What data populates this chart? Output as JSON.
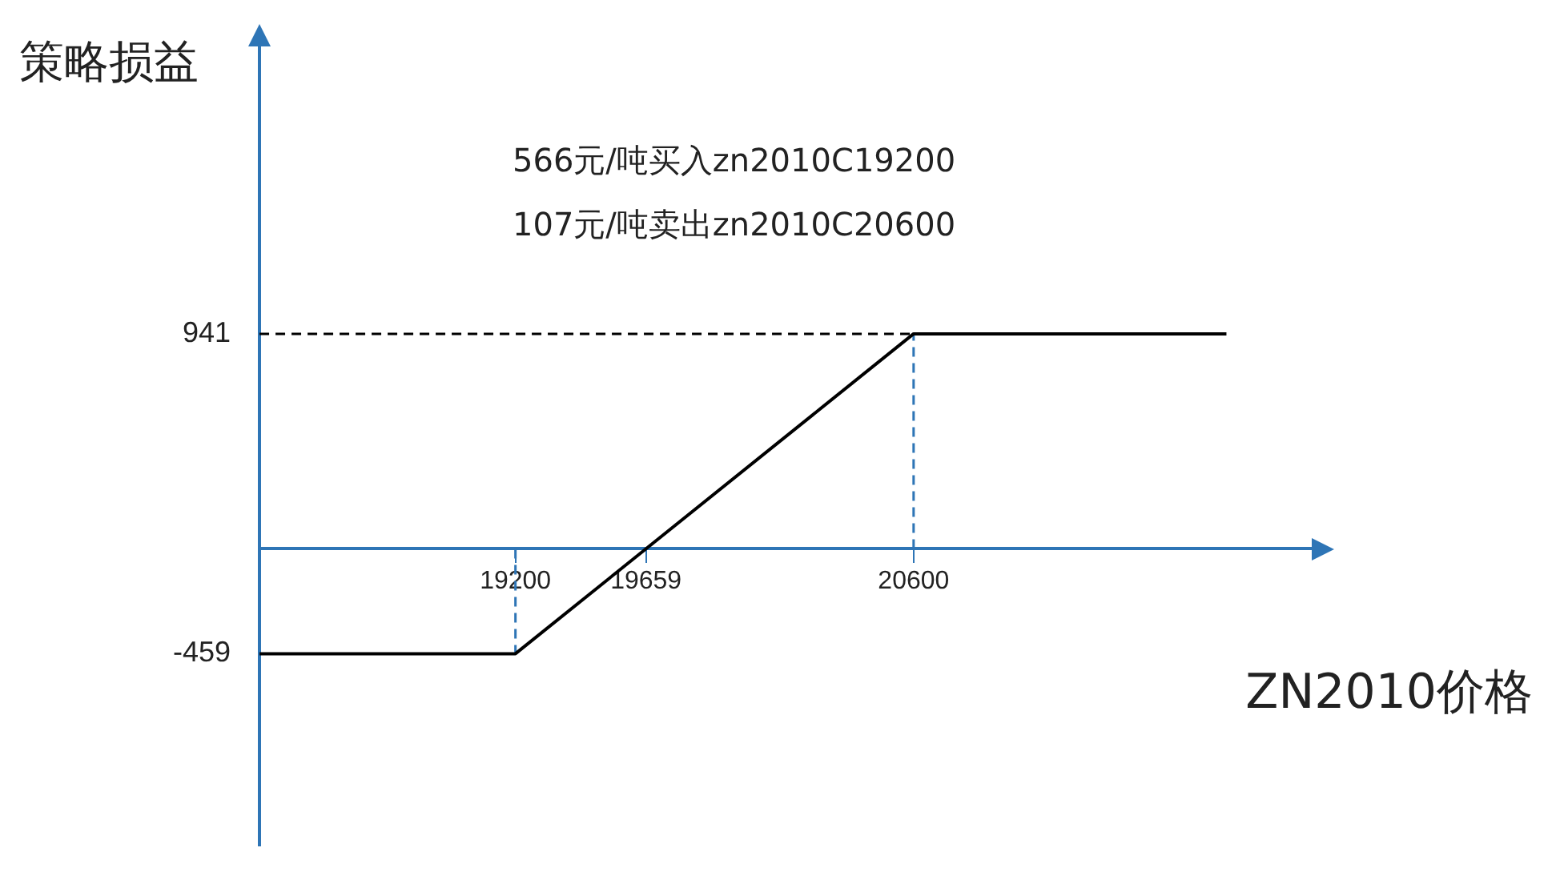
{
  "chart_data": {
    "type": "line",
    "xlabel": "ZN2010价格",
    "ylabel": "策略损益",
    "annotations": [
      "566元/吨买入zn2010C19200",
      "107元/吨卖出zn2010C20600"
    ],
    "x": [
      18300,
      19200,
      20600,
      21700
    ],
    "values": [
      -459,
      -459,
      941,
      941
    ],
    "color": "#000000",
    "xlim": [
      18300,
      22000
    ],
    "xticks": [
      19200,
      19659,
      20600
    ],
    "ylim": [
      -1300,
      2200
    ],
    "yticks": [
      -459,
      941
    ],
    "ref_lines": [
      {
        "axis": "x",
        "value": 19200,
        "color": "#2e75b6",
        "line_style": "dashed"
      },
      {
        "axis": "x",
        "value": 20600,
        "color": "#2e75b6",
        "line_style": "dashed"
      },
      {
        "axis": "y",
        "value": 941,
        "color": "#000000",
        "line_style": "dashed"
      }
    ],
    "grid": false,
    "legend": false,
    "marker": "none",
    "line_style": "solid"
  }
}
